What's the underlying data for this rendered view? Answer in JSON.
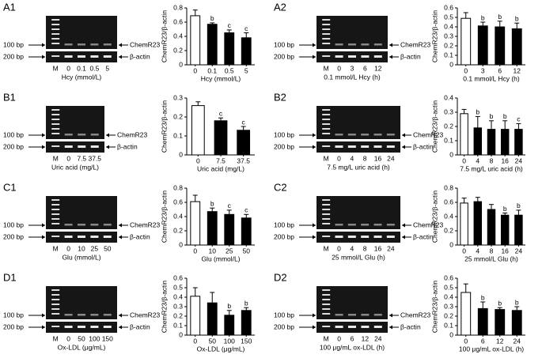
{
  "gel_labels": {
    "upper_size": "100 bp",
    "lower_size": "200 bp",
    "upper_band": "ChemR23",
    "lower_band": "β-actin",
    "marker": "M"
  },
  "chart_data": [
    {
      "type": "bar",
      "panel": "A1",
      "ylabel": "ChemR23/β-actin",
      "xlabel": "Hcy (mmol/L)",
      "categories": [
        "0",
        "0.1",
        "0.5",
        "5"
      ],
      "values": [
        0.69,
        0.57,
        0.45,
        0.38
      ],
      "errors": [
        0.08,
        0.02,
        0.04,
        0.07
      ],
      "annotations": [
        null,
        "b",
        "c",
        "c"
      ],
      "bar_colors": [
        "#ffffff",
        "#000000",
        "#000000",
        "#000000"
      ],
      "ylim": [
        0,
        0.8
      ],
      "yticks": [
        0,
        0.2,
        0.4,
        0.6,
        0.8
      ]
    },
    {
      "type": "bar",
      "panel": "A2",
      "ylabel": "ChemR23/β-actin",
      "xlabel": "0.1 mmol/L Hcy (h)",
      "categories": [
        "0",
        "3",
        "6",
        "12"
      ],
      "values": [
        0.49,
        0.41,
        0.4,
        0.38
      ],
      "errors": [
        0.06,
        0.04,
        0.06,
        0.06
      ],
      "annotations": [
        null,
        "b",
        "b",
        "b"
      ],
      "bar_colors": [
        "#ffffff",
        "#000000",
        "#000000",
        "#000000"
      ],
      "ylim": [
        0,
        0.6
      ],
      "yticks": [
        0,
        0.1,
        0.2,
        0.3,
        0.4,
        0.5,
        0.6
      ]
    },
    {
      "type": "bar",
      "panel": "B1",
      "ylabel": "ChemR23/β-actin",
      "xlabel": "Uric acid (mg/L)",
      "categories": [
        "0",
        "7.5",
        "37.5"
      ],
      "values": [
        0.26,
        0.18,
        0.13
      ],
      "errors": [
        0.02,
        0.015,
        0.02
      ],
      "annotations": [
        null,
        "c",
        "c"
      ],
      "bar_colors": [
        "#ffffff",
        "#000000",
        "#000000"
      ],
      "ylim": [
        0,
        0.3
      ],
      "yticks": [
        0,
        0.1,
        0.2,
        0.3
      ]
    },
    {
      "type": "bar",
      "panel": "B2",
      "ylabel": "ChemR23/β-actin",
      "xlabel": "7.5 mg/L uric acid (h)",
      "categories": [
        "0",
        "4",
        "8",
        "16",
        "24"
      ],
      "values": [
        0.29,
        0.19,
        0.18,
        0.18,
        0.18
      ],
      "errors": [
        0.03,
        0.08,
        0.06,
        0.06,
        0.04
      ],
      "annotations": [
        null,
        "b",
        "b",
        "b",
        "c"
      ],
      "bar_colors": [
        "#ffffff",
        "#000000",
        "#000000",
        "#000000",
        "#000000"
      ],
      "ylim": [
        0,
        0.4
      ],
      "yticks": [
        0,
        0.1,
        0.2,
        0.3,
        0.4
      ]
    },
    {
      "type": "bar",
      "panel": "C1",
      "ylabel": "ChemR23/β-actin",
      "xlabel": "Glu (mmol/L)",
      "categories": [
        "0",
        "10",
        "25",
        "50"
      ],
      "values": [
        0.61,
        0.47,
        0.43,
        0.38
      ],
      "errors": [
        0.09,
        0.05,
        0.06,
        0.05
      ],
      "annotations": [
        null,
        "b",
        "c",
        "c"
      ],
      "bar_colors": [
        "#ffffff",
        "#000000",
        "#000000",
        "#000000"
      ],
      "ylim": [
        0,
        0.8
      ],
      "yticks": [
        0,
        0.2,
        0.4,
        0.6,
        0.8
      ]
    },
    {
      "type": "bar",
      "panel": "C2",
      "ylabel": "ChemR23/β-actin",
      "xlabel": "25 mmol/L Glu (h)",
      "categories": [
        "0",
        "4",
        "8",
        "16",
        "24"
      ],
      "values": [
        0.59,
        0.61,
        0.5,
        0.42,
        0.42
      ],
      "errors": [
        0.07,
        0.06,
        0.07,
        0.03,
        0.07
      ],
      "annotations": [
        null,
        null,
        null,
        "b",
        "b"
      ],
      "bar_colors": [
        "#ffffff",
        "#000000",
        "#000000",
        "#000000",
        "#000000"
      ],
      "ylim": [
        0,
        0.8
      ],
      "yticks": [
        0,
        0.2,
        0.4,
        0.6,
        0.8
      ]
    },
    {
      "type": "bar",
      "panel": "D1",
      "ylabel": "ChemR23/β-actin",
      "xlabel": "Ox-LDL (μg/mL)",
      "categories": [
        "0",
        "50",
        "100",
        "150"
      ],
      "values": [
        0.41,
        0.34,
        0.21,
        0.26
      ],
      "errors": [
        0.09,
        0.11,
        0.05,
        0.03
      ],
      "annotations": [
        null,
        null,
        "b",
        "b"
      ],
      "bar_colors": [
        "#ffffff",
        "#000000",
        "#000000",
        "#000000"
      ],
      "ylim": [
        0,
        0.6
      ],
      "yticks": [
        0,
        0.1,
        0.2,
        0.3,
        0.4,
        0.5,
        0.6
      ]
    },
    {
      "type": "bar",
      "panel": "D2",
      "ylabel": "ChemR23/β-actin",
      "xlabel": "100 μg/mL ox-LDL (h)",
      "categories": [
        "0",
        "6",
        "12",
        "24"
      ],
      "values": [
        0.45,
        0.28,
        0.27,
        0.26
      ],
      "errors": [
        0.09,
        0.07,
        0.02,
        0.04
      ],
      "annotations": [
        null,
        "b",
        "b",
        "b"
      ],
      "bar_colors": [
        "#ffffff",
        "#000000",
        "#000000",
        "#000000"
      ],
      "ylim": [
        0,
        0.6
      ],
      "yticks": [
        0,
        0.1,
        0.2,
        0.3,
        0.4,
        0.5,
        0.6
      ]
    }
  ]
}
